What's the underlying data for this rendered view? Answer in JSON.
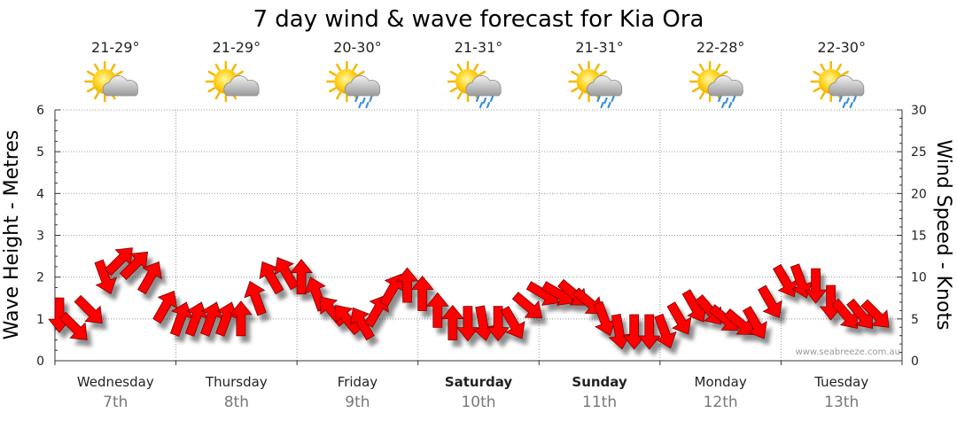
{
  "chart_data": {
    "type": "line",
    "title": "7 day wind & wave forecast for Kia Ora",
    "y_left": {
      "label": "Wave Height - Metres",
      "range": [
        0,
        6
      ],
      "ticks": [
        "0",
        "1",
        "2",
        "3",
        "4",
        "5",
        "6"
      ]
    },
    "y_right": {
      "label": "Wind Speed - Knots",
      "range": [
        0,
        30
      ],
      "ticks": [
        "0",
        "5",
        "10",
        "15",
        "20",
        "25",
        "30"
      ]
    },
    "grid": true,
    "days": [
      {
        "name": "Wednesday",
        "date": "7th",
        "temp": "21-29°",
        "icon": "partly-cloudy-icon",
        "weekend": false
      },
      {
        "name": "Thursday",
        "date": "8th",
        "temp": "21-29°",
        "icon": "partly-cloudy-icon",
        "weekend": false
      },
      {
        "name": "Friday",
        "date": "9th",
        "temp": "20-30°",
        "icon": "showers-icon",
        "weekend": false
      },
      {
        "name": "Saturday",
        "date": "10th",
        "temp": "21-31°",
        "icon": "showers-icon",
        "weekend": true
      },
      {
        "name": "Sunday",
        "date": "11th",
        "temp": "21-31°",
        "icon": "showers-icon",
        "weekend": true
      },
      {
        "name": "Monday",
        "date": "12th",
        "temp": "22-28°",
        "icon": "showers-icon",
        "weekend": false
      },
      {
        "name": "Tuesday",
        "date": "13th",
        "temp": "22-30°",
        "icon": "showers-icon",
        "weekend": false
      }
    ],
    "series": [
      {
        "name": "Wind Speed - Knots",
        "arrow_color": "#ff0000",
        "x_hours": [
          0,
          3,
          6,
          9,
          12,
          15,
          18,
          21,
          24,
          27,
          30,
          33,
          36,
          39,
          42,
          45,
          48,
          51,
          54,
          57,
          60,
          63,
          66,
          69,
          72,
          75,
          78,
          81,
          84,
          87,
          90,
          93,
          96,
          99,
          102,
          105,
          108,
          111,
          114,
          117,
          120,
          123,
          126,
          129,
          132,
          135,
          138,
          141,
          144,
          147,
          150,
          153,
          156,
          159,
          162
        ],
        "knots": [
          5.5,
          4,
          6,
          10,
          12,
          11.5,
          10,
          6.5,
          5,
          5,
          5,
          5,
          5,
          7.5,
          10,
          10.5,
          10,
          8,
          6,
          5,
          4.5,
          6,
          8.5,
          9,
          8,
          6,
          4.5,
          4.5,
          4.5,
          4.5,
          4.5,
          6.5,
          8,
          8,
          8,
          7,
          5,
          3.5,
          3.5,
          3.5,
          3.5,
          5,
          6.5,
          6,
          5,
          4.5,
          4.5,
          7,
          9.5,
          9.5,
          9,
          7,
          5.5,
          5.5,
          5.5
        ],
        "direction_deg": [
          90,
          45,
          45,
          70,
          315,
          315,
          300,
          300,
          290,
          290,
          290,
          290,
          270,
          250,
          240,
          240,
          270,
          250,
          230,
          230,
          240,
          300,
          300,
          270,
          270,
          270,
          270,
          90,
          80,
          90,
          60,
          40,
          30,
          30,
          40,
          40,
          70,
          80,
          90,
          90,
          70,
          60,
          60,
          50,
          40,
          40,
          60,
          60,
          60,
          70,
          90,
          90,
          50,
          50,
          45
        ]
      }
    ],
    "credit": "www.seabreeze.com.au"
  }
}
